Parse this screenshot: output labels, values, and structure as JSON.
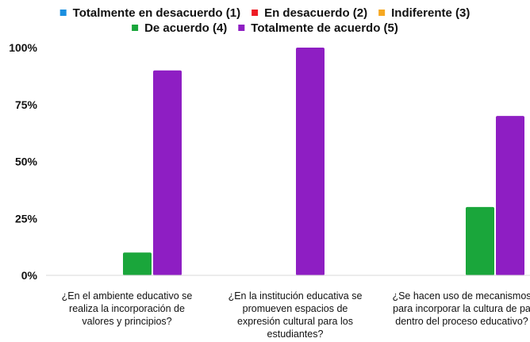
{
  "chart_data": {
    "type": "bar",
    "title": "",
    "xlabel": "",
    "ylabel": "",
    "ylim": [
      0,
      1
    ],
    "y_ticks": [
      "0%",
      "25%",
      "50%",
      "75%",
      "100%"
    ],
    "grid": false,
    "legend_position": "top",
    "categories": [
      [
        "¿En el ambiente educativo se",
        "realiza la incorporación de",
        "valores y principios?"
      ],
      [
        "¿En la institución educativa se",
        "promueven espacios de",
        "expresión cultural para los",
        "estudiantes?"
      ],
      [
        "¿Se hacen uso de mecanismos",
        "para incorporar la cultura de pa",
        "dentro del proceso educativo?"
      ]
    ],
    "series": [
      {
        "name": "Totalmente en desacuerdo (1)",
        "color": "#1a8fe0",
        "values": [
          0,
          0,
          0
        ]
      },
      {
        "name": "En desacuerdo (2)",
        "color": "#ee1c25",
        "values": [
          0,
          0,
          0
        ]
      },
      {
        "name": "Indiferente (3)",
        "color": "#f6a821",
        "values": [
          0,
          0,
          0
        ]
      },
      {
        "name": "De acuerdo (4)",
        "color": "#1aa63b",
        "values": [
          0.1,
          0,
          0.3
        ]
      },
      {
        "name": "Totalmente de acuerdo (5)",
        "color": "#8e1ec3",
        "values": [
          0.9,
          1.0,
          0.7
        ]
      }
    ]
  }
}
